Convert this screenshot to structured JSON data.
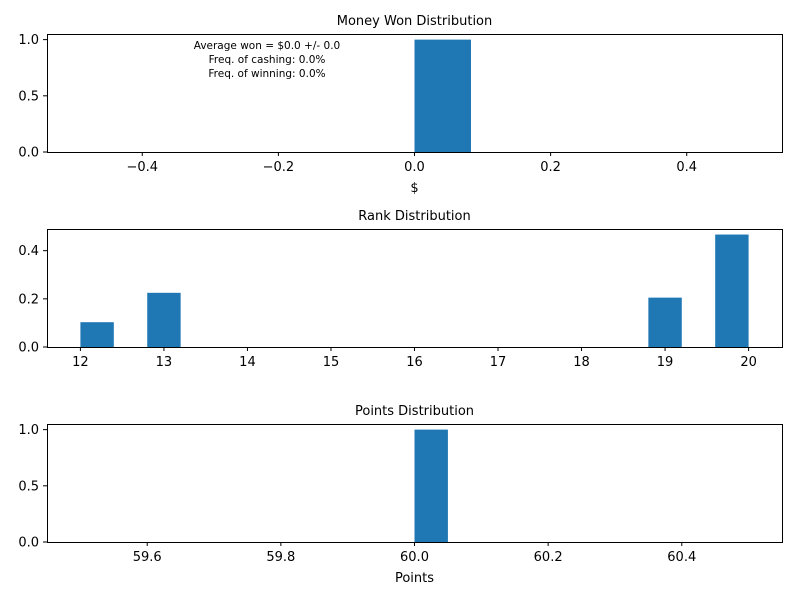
{
  "chart_data": [
    {
      "type": "bar",
      "title": "Money Won Distribution",
      "xlabel": "$",
      "ylabel": "",
      "xlim": [
        -0.54,
        0.54
      ],
      "ylim": [
        0,
        1.05
      ],
      "xticks": [
        -0.4,
        -0.2,
        0.0,
        0.2,
        0.4
      ],
      "xtick_labels": [
        "−0.4",
        "−0.2",
        "0.0",
        "0.2",
        "0.4"
      ],
      "yticks": [
        0.0,
        0.5,
        1.0
      ],
      "ytick_labels": [
        "0.0",
        "0.5",
        "1.0"
      ],
      "bars": [
        {
          "x0": 0.0,
          "x1": 0.083,
          "value": 1.0
        }
      ],
      "annotations": [
        "Average won = $0.0 +/- 0.0",
        "Freq. of cashing: 0.0%",
        "Freq. of winning: 0.0%"
      ],
      "color": "#1f77b4",
      "grid": false
    },
    {
      "type": "bar",
      "title": "Rank Distribution",
      "xlabel": "",
      "ylabel": "",
      "xlim": [
        11.6,
        20.4
      ],
      "ylim": [
        0,
        0.49
      ],
      "xticks": [
        12,
        13,
        14,
        15,
        16,
        17,
        18,
        19,
        20
      ],
      "xtick_labels": [
        "12",
        "13",
        "14",
        "15",
        "16",
        "17",
        "18",
        "19",
        "20"
      ],
      "yticks": [
        0.0,
        0.2,
        0.4
      ],
      "ytick_labels": [
        "0.0",
        "0.2",
        "0.4"
      ],
      "bars": [
        {
          "x0": 12.0,
          "x1": 12.4,
          "value": 0.103
        },
        {
          "x0": 12.8,
          "x1": 13.2,
          "value": 0.225
        },
        {
          "x0": 18.8,
          "x1": 19.2,
          "value": 0.205
        },
        {
          "x0": 19.6,
          "x1": 20.0,
          "value": 0.467
        }
      ],
      "color": "#1f77b4",
      "grid": false
    },
    {
      "type": "bar",
      "title": "Points Distribution",
      "xlabel": "Points",
      "ylabel": "",
      "xlim": [
        59.45,
        60.55
      ],
      "ylim": [
        0,
        1.05
      ],
      "xticks": [
        59.6,
        59.8,
        60.0,
        60.2,
        60.4
      ],
      "xtick_labels": [
        "59.6",
        "59.8",
        "60.0",
        "60.2",
        "60.4"
      ],
      "yticks": [
        0.0,
        0.5,
        1.0
      ],
      "ytick_labels": [
        "0.0",
        "0.5",
        "1.0"
      ],
      "bars": [
        {
          "x0": 60.0,
          "x1": 60.05,
          "value": 1.0
        }
      ],
      "color": "#1f77b4",
      "grid": false
    }
  ]
}
